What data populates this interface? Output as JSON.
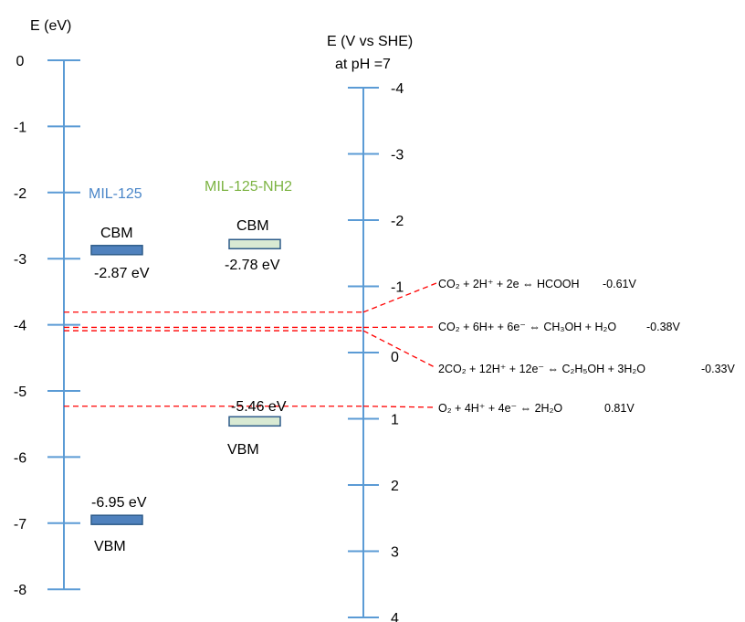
{
  "left_axis": {
    "title": "E (eV)",
    "ticks": [
      "0",
      "-1",
      "-2",
      "-3",
      "-4",
      "-5",
      "-6",
      "-7",
      "-8"
    ],
    "color": "#5b9bd5"
  },
  "right_axis": {
    "title_line1": "E (V vs SHE)",
    "title_line2": "at pH =7",
    "ticks": [
      "-4",
      "-3",
      "-2",
      "-1",
      "0",
      "1",
      "2",
      "3",
      "4"
    ],
    "color": "#5b9bd5"
  },
  "materials": [
    {
      "name": "MIL-125",
      "name_color": "#4a86c8",
      "cbm_label": "CBM",
      "cbm_value": "-2.87 eV",
      "cbm_energy": -2.87,
      "cbm_fill": "#4f81bd",
      "vbm_label": "VBM",
      "vbm_value": "-6.95 eV",
      "vbm_energy": -6.95,
      "vbm_fill": "#4f81bd"
    },
    {
      "name": "MIL-125-NH2",
      "name_color": "#7cb342",
      "cbm_label": "CBM",
      "cbm_value": "-2.78 eV",
      "cbm_energy": -2.78,
      "cbm_fill": "#d9ead3",
      "vbm_label": "VBM",
      "vbm_value": "-5.46 eV",
      "vbm_energy": -5.46,
      "vbm_fill": "#d9ead3"
    }
  ],
  "redox": [
    {
      "potential": -0.61,
      "equation": "CO₂ + 2H⁺ + 2e ⇔ HCOOH",
      "value": "-0.61V"
    },
    {
      "potential": -0.38,
      "equation": "CO₂ + 6H+ + 6e⁻ ⇔ CH₃OH + H₂O",
      "value": "-0.38V"
    },
    {
      "potential": -0.33,
      "equation": "2CO₂ + 12H⁺ + 12e⁻ ⇔ C₂H₅OH + 3H₂O",
      "value": "-0.33V"
    },
    {
      "potential": 0.81,
      "equation": "O₂ + 4H⁺ + 4e⁻ ⇔ 2H₂O",
      "value": "0.81V"
    }
  ],
  "redox_line_color": "#ff0000"
}
